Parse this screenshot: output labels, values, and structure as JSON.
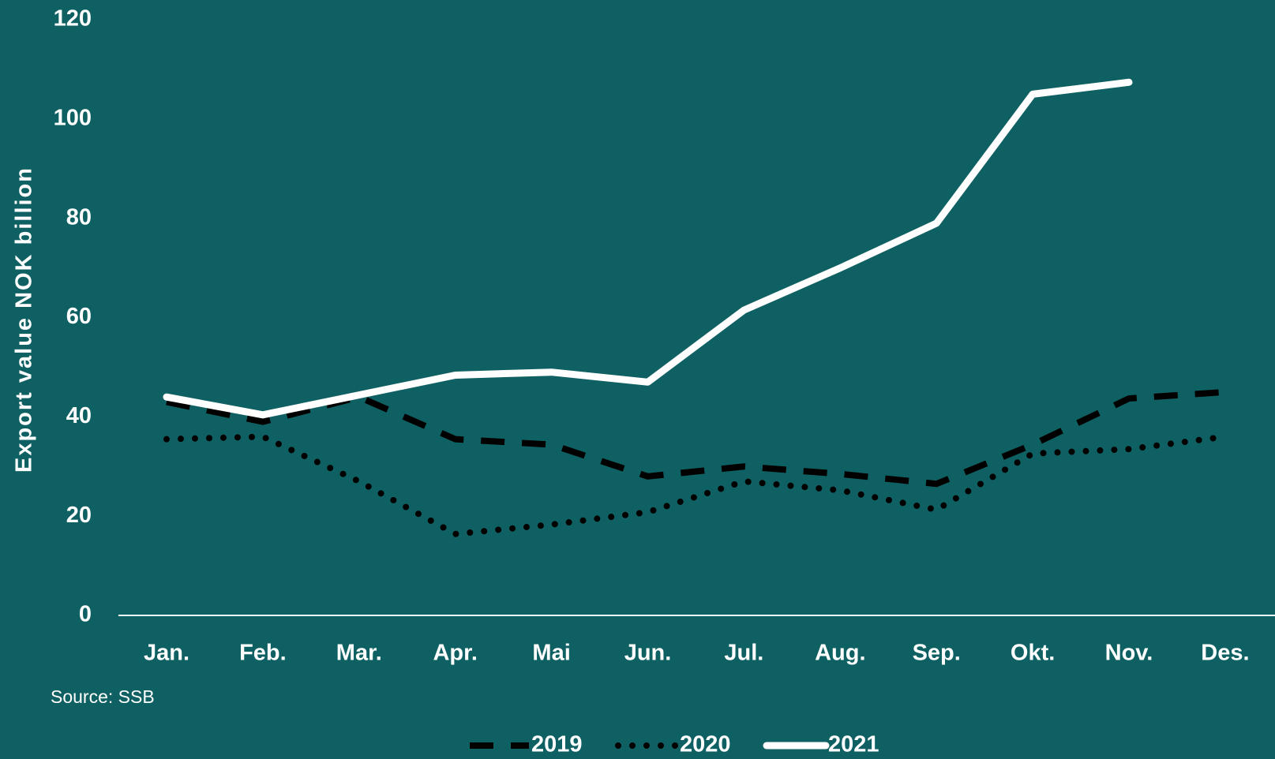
{
  "chart_data": {
    "type": "line",
    "y_label": "Export value NOK billion",
    "source": "Source: SSB",
    "categories": [
      "Jan.",
      "Feb.",
      "Mar.",
      "Apr.",
      "Mai",
      "Jun.",
      "Jul.",
      "Aug.",
      "Sep.",
      "Okt.",
      "Nov.",
      "Des."
    ],
    "series": [
      {
        "name": "2019",
        "color": "#000000",
        "style": "dashed",
        "values": [
          43,
          39,
          44,
          35.5,
          34.4,
          28,
          30,
          28.5,
          26.5,
          34.4,
          43.7,
          45
        ]
      },
      {
        "name": "2020",
        "color": "#000000",
        "style": "dotted",
        "values": [
          35.5,
          36,
          27,
          16.4,
          18.3,
          20.8,
          27,
          25.2,
          21.3,
          32.6,
          33.5,
          36
        ]
      },
      {
        "name": "2021",
        "color": "#ffffff",
        "style": "solid",
        "values": [
          44,
          40.4,
          44.4,
          48.4,
          49,
          47,
          61.5,
          70,
          79,
          105,
          107.4,
          null
        ]
      }
    ],
    "ylim": [
      0,
      120
    ],
    "yticks": [
      0,
      20,
      40,
      60,
      80,
      100,
      120
    ],
    "grid": false,
    "legend": "bottom"
  }
}
